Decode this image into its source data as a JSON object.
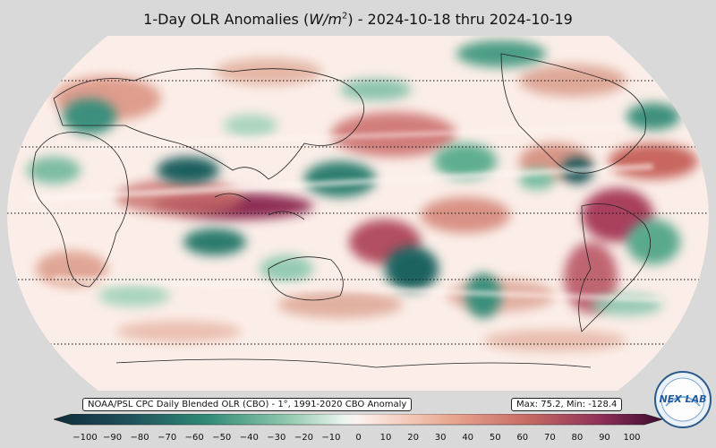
{
  "title": "1-Day OLR Anomalies (W/m²) - 2024-10-18 thru 2024-10-19",
  "title_parts": {
    "prefix": "1-Day OLR Anomalies (",
    "unit_main": "W/m",
    "unit_exp": "2",
    "suffix": ") - 2024-10-18 thru 2024-10-19"
  },
  "source_label": "NOAA/PSL CPC Daily Blended OLR (CBO) - 1°, 1991-2020 CBO Anomaly",
  "stats_label": "Max: 75.2,  Min: -128.4",
  "logo_text": "NEX LAB",
  "colorbar": {
    "min": -100,
    "max": 100,
    "ticks": [
      "−100",
      "−90",
      "−80",
      "−70",
      "−60",
      "−50",
      "−40",
      "−30",
      "−20",
      "−10",
      "0",
      "10",
      "20",
      "30",
      "40",
      "50",
      "60",
      "70",
      "80",
      "90",
      "100"
    ],
    "colors": {
      "neg_extreme": "#0f2d3a",
      "neg_strong": "#1f6f66",
      "neg_mid": "#5fae91",
      "neg_light": "#c7e6d6",
      "neutral": "#fbf3ef",
      "pos_light": "#f0c4b0",
      "pos_mid": "#d4826f",
      "pos_strong": "#a13d5a",
      "pos_extreme": "#3c0b2f"
    }
  },
  "map": {
    "ocean_fill": "#fbeee8",
    "outline_color": "#222222",
    "gridline_style": "dotted"
  }
}
